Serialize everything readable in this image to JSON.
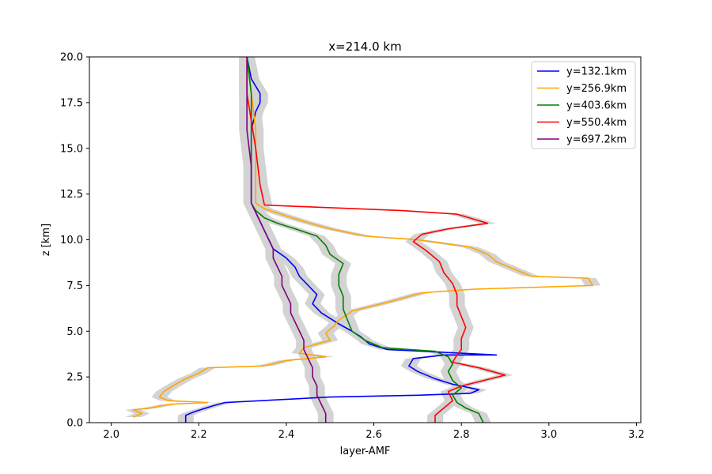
{
  "chart_data": {
    "type": "line",
    "title": "x=214.0 km",
    "xlabel": "layer-AMF",
    "ylabel": "z [km]",
    "xlim": [
      1.95,
      3.21
    ],
    "ylim": [
      0,
      20
    ],
    "xticks": [
      "2.0",
      "2.2",
      "2.4",
      "2.6",
      "2.8",
      "3.0",
      "3.2"
    ],
    "xtick_values": [
      2.0,
      2.2,
      2.4,
      2.6,
      2.8,
      3.0,
      3.2
    ],
    "yticks": [
      "0.0",
      "2.5",
      "5.0",
      "7.5",
      "10.0",
      "12.5",
      "15.0",
      "17.5",
      "20.0"
    ],
    "ytick_values": [
      0,
      2.5,
      5.0,
      7.5,
      10.0,
      12.5,
      15.0,
      17.5,
      20.0
    ],
    "grid": false,
    "legend_position": "top-right",
    "uncertainty_band_color": "#d3d3d3",
    "series": [
      {
        "name": "y=132.1km",
        "color": "#0000ff",
        "points": [
          [
            2.17,
            0.0
          ],
          [
            2.17,
            0.4
          ],
          [
            2.19,
            0.6
          ],
          [
            2.23,
            0.9
          ],
          [
            2.26,
            1.1
          ],
          [
            2.5,
            1.4
          ],
          [
            2.7,
            1.5
          ],
          [
            2.82,
            1.6
          ],
          [
            2.84,
            1.8
          ],
          [
            2.78,
            2.1
          ],
          [
            2.74,
            2.4
          ],
          [
            2.7,
            2.8
          ],
          [
            2.68,
            3.1
          ],
          [
            2.69,
            3.5
          ],
          [
            2.76,
            3.7
          ],
          [
            2.88,
            3.7
          ],
          [
            2.63,
            4.0
          ],
          [
            2.59,
            4.3
          ],
          [
            2.57,
            4.7
          ],
          [
            2.55,
            5.0
          ],
          [
            2.52,
            5.4
          ],
          [
            2.48,
            6.0
          ],
          [
            2.46,
            6.5
          ],
          [
            2.47,
            7.0
          ],
          [
            2.45,
            7.5
          ],
          [
            2.43,
            8.0
          ],
          [
            2.42,
            8.5
          ],
          [
            2.4,
            9.0
          ],
          [
            2.37,
            9.5
          ],
          [
            2.36,
            10.0
          ],
          [
            2.35,
            10.5
          ],
          [
            2.34,
            11.0
          ],
          [
            2.33,
            11.5
          ],
          [
            2.32,
            12.0
          ],
          [
            2.32,
            14.0
          ],
          [
            2.32,
            16.0
          ],
          [
            2.33,
            17.0
          ],
          [
            2.34,
            17.5
          ],
          [
            2.34,
            18.0
          ],
          [
            2.32,
            18.8
          ],
          [
            2.31,
            20.0
          ]
        ]
      },
      {
        "name": "y=256.9km",
        "color": "#ffa500",
        "points": [
          [
            2.05,
            0.3
          ],
          [
            2.07,
            0.5
          ],
          [
            2.05,
            0.7
          ],
          [
            2.09,
            0.8
          ],
          [
            2.13,
            1.0
          ],
          [
            2.22,
            1.1
          ],
          [
            2.13,
            1.2
          ],
          [
            2.11,
            1.4
          ],
          [
            2.12,
            1.7
          ],
          [
            2.14,
            2.0
          ],
          [
            2.17,
            2.4
          ],
          [
            2.2,
            2.7
          ],
          [
            2.22,
            3.0
          ],
          [
            2.35,
            3.1
          ],
          [
            2.4,
            3.4
          ],
          [
            2.49,
            3.6
          ],
          [
            2.43,
            3.8
          ],
          [
            2.44,
            4.1
          ],
          [
            2.47,
            4.3
          ],
          [
            2.5,
            4.5
          ],
          [
            2.49,
            4.9
          ],
          [
            2.51,
            5.3
          ],
          [
            2.52,
            5.6
          ],
          [
            2.55,
            6.1
          ],
          [
            2.6,
            6.4
          ],
          [
            2.65,
            6.7
          ],
          [
            2.71,
            7.1
          ],
          [
            2.83,
            7.3
          ],
          [
            3.1,
            7.5
          ],
          [
            3.09,
            7.9
          ],
          [
            2.96,
            8.0
          ],
          [
            2.92,
            8.4
          ],
          [
            2.88,
            8.8
          ],
          [
            2.86,
            9.2
          ],
          [
            2.82,
            9.6
          ],
          [
            2.7,
            10.0
          ],
          [
            2.58,
            10.2
          ],
          [
            2.5,
            10.6
          ],
          [
            2.44,
            11.0
          ],
          [
            2.4,
            11.3
          ],
          [
            2.35,
            11.7
          ],
          [
            2.33,
            12.0
          ],
          [
            2.33,
            14.0
          ],
          [
            2.33,
            16.0
          ],
          [
            2.32,
            18.0
          ],
          [
            2.31,
            20.0
          ]
        ]
      },
      {
        "name": "y=403.6km",
        "color": "#008000",
        "points": [
          [
            2.85,
            0.0
          ],
          [
            2.84,
            0.5
          ],
          [
            2.81,
            0.8
          ],
          [
            2.79,
            1.1
          ],
          [
            2.78,
            1.5
          ],
          [
            2.8,
            1.9
          ],
          [
            2.78,
            2.3
          ],
          [
            2.77,
            2.8
          ],
          [
            2.78,
            3.2
          ],
          [
            2.77,
            3.6
          ],
          [
            2.74,
            3.9
          ],
          [
            2.62,
            4.1
          ],
          [
            2.58,
            4.5
          ],
          [
            2.55,
            5.0
          ],
          [
            2.54,
            5.6
          ],
          [
            2.53,
            6.2
          ],
          [
            2.53,
            6.9
          ],
          [
            2.52,
            7.5
          ],
          [
            2.52,
            8.1
          ],
          [
            2.53,
            8.7
          ],
          [
            2.5,
            9.2
          ],
          [
            2.49,
            9.7
          ],
          [
            2.47,
            10.2
          ],
          [
            2.42,
            10.6
          ],
          [
            2.38,
            10.9
          ],
          [
            2.35,
            11.2
          ],
          [
            2.33,
            11.6
          ],
          [
            2.32,
            12.0
          ],
          [
            2.32,
            14.0
          ],
          [
            2.32,
            16.0
          ],
          [
            2.32,
            18.0
          ],
          [
            2.31,
            20.0
          ]
        ]
      },
      {
        "name": "y=550.4km",
        "color": "#ff0000",
        "points": [
          [
            2.74,
            0.0
          ],
          [
            2.74,
            0.4
          ],
          [
            2.76,
            0.8
          ],
          [
            2.78,
            1.2
          ],
          [
            2.77,
            1.7
          ],
          [
            2.8,
            2.0
          ],
          [
            2.85,
            2.3
          ],
          [
            2.9,
            2.6
          ],
          [
            2.84,
            3.0
          ],
          [
            2.78,
            3.3
          ],
          [
            2.79,
            3.7
          ],
          [
            2.8,
            4.0
          ],
          [
            2.8,
            4.6
          ],
          [
            2.81,
            5.2
          ],
          [
            2.8,
            5.8
          ],
          [
            2.79,
            6.4
          ],
          [
            2.79,
            7.0
          ],
          [
            2.78,
            7.6
          ],
          [
            2.76,
            8.2
          ],
          [
            2.75,
            8.8
          ],
          [
            2.72,
            9.4
          ],
          [
            2.69,
            9.9
          ],
          [
            2.71,
            10.3
          ],
          [
            2.77,
            10.6
          ],
          [
            2.86,
            10.9
          ],
          [
            2.79,
            11.4
          ],
          [
            2.66,
            11.6
          ],
          [
            2.45,
            11.8
          ],
          [
            2.35,
            11.9
          ],
          [
            2.34,
            13.0
          ],
          [
            2.33,
            15.0
          ],
          [
            2.32,
            16.5
          ],
          [
            2.31,
            18.0
          ],
          [
            2.31,
            20.0
          ]
        ]
      },
      {
        "name": "y=697.2km",
        "color": "#800080",
        "points": [
          [
            2.49,
            0.0
          ],
          [
            2.49,
            0.5
          ],
          [
            2.48,
            1.0
          ],
          [
            2.47,
            1.5
          ],
          [
            2.47,
            2.0
          ],
          [
            2.46,
            2.5
          ],
          [
            2.46,
            3.0
          ],
          [
            2.45,
            3.5
          ],
          [
            2.44,
            4.0
          ],
          [
            2.44,
            4.5
          ],
          [
            2.43,
            5.0
          ],
          [
            2.42,
            5.5
          ],
          [
            2.41,
            6.0
          ],
          [
            2.41,
            6.5
          ],
          [
            2.4,
            7.0
          ],
          [
            2.39,
            7.5
          ],
          [
            2.39,
            8.0
          ],
          [
            2.38,
            8.5
          ],
          [
            2.37,
            9.0
          ],
          [
            2.37,
            9.5
          ],
          [
            2.36,
            10.0
          ],
          [
            2.35,
            10.5
          ],
          [
            2.34,
            11.0
          ],
          [
            2.33,
            11.5
          ],
          [
            2.32,
            12.0
          ],
          [
            2.32,
            14.0
          ],
          [
            2.31,
            16.0
          ],
          [
            2.31,
            18.0
          ],
          [
            2.31,
            20.0
          ]
        ]
      }
    ]
  }
}
